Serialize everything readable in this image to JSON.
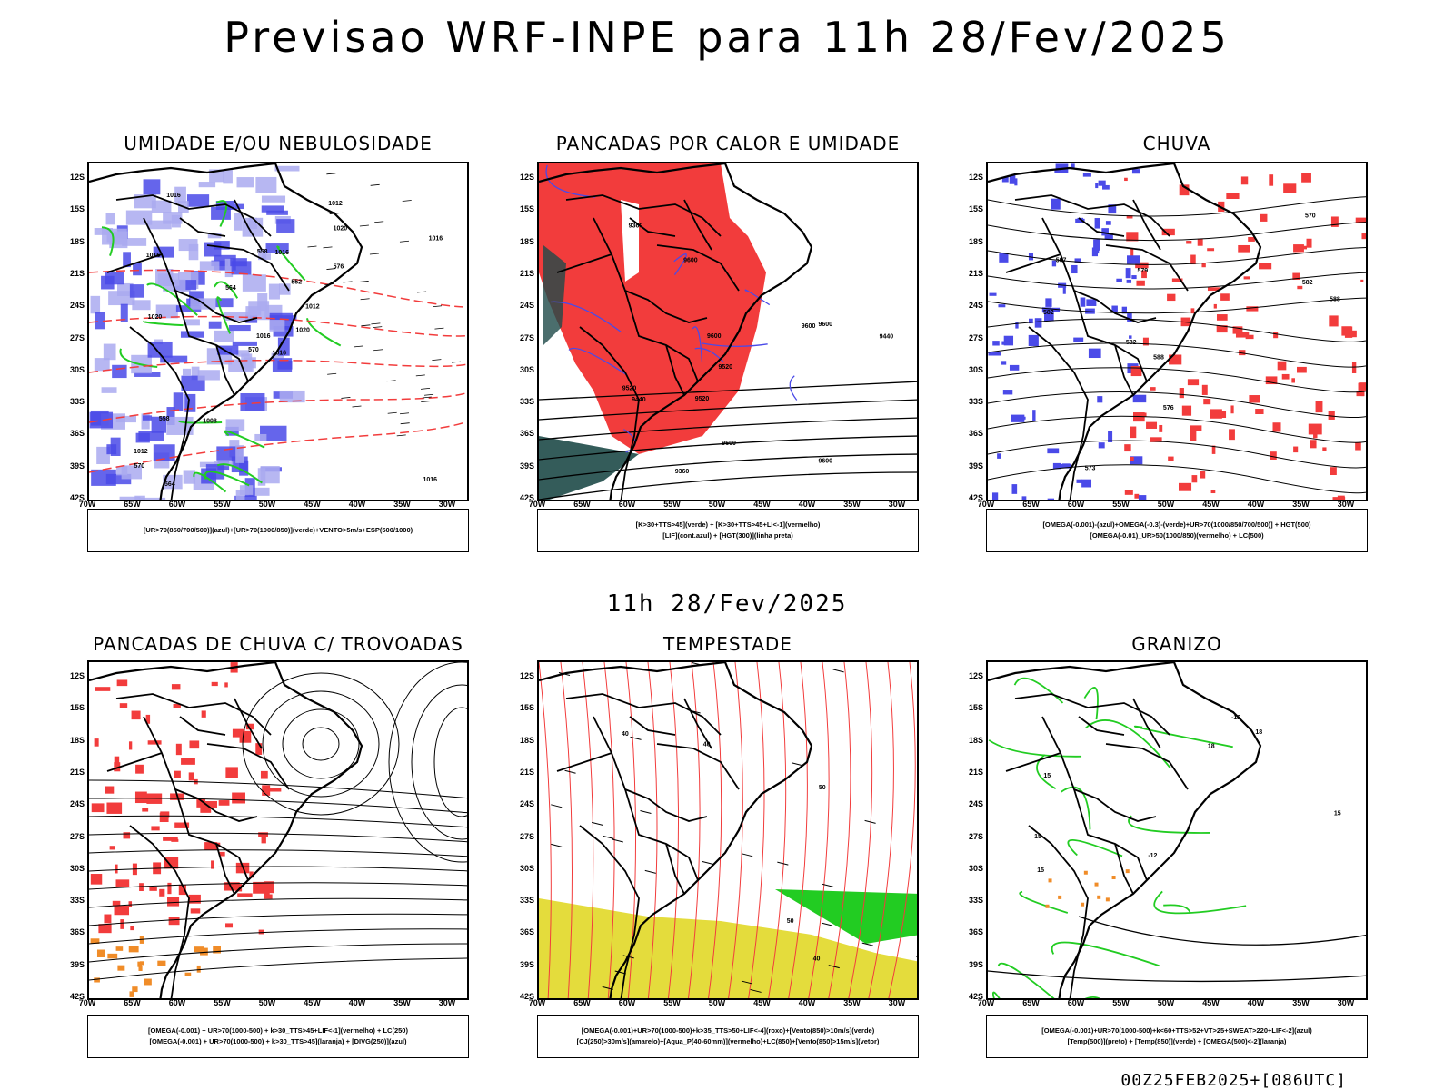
{
  "title": "Previsao WRF-INPE  para 11h 28/Fev/2025",
  "mid_title": "11h 28/Fev/2025",
  "footer": "00Z25FEB2025+[086UTC]",
  "lat_labels": [
    "12S",
    "15S",
    "18S",
    "21S",
    "24S",
    "27S",
    "30S",
    "33S",
    "36S",
    "39S",
    "42S"
  ],
  "lon_labels": [
    "70W",
    "65W",
    "60W",
    "55W",
    "50W",
    "45W",
    "40W",
    "35W",
    "30W"
  ],
  "colors": {
    "blue": "#4a4ae8",
    "lavender": "#aaaaf0",
    "green": "#22cc22",
    "red": "#f23c3c",
    "darkteal": "#1e4a48",
    "yellow": "#e4dc3c",
    "orange": "#f08c28",
    "purple": "#b040c0"
  },
  "panels": [
    {
      "title": "UMIDADE E/OU NEBULOSIDADE",
      "legend": [
        "[UR>70(850/700/500)](azul)+[UR>70(1000/850)](verde)+VENTO>5m/s+ESP(500/1000)"
      ],
      "contour_labels": [
        "1016",
        "1016",
        "1016",
        "1012",
        "1012",
        "1008",
        "1012",
        "1016",
        "1020",
        "1020",
        "1016",
        "1016",
        "1020",
        "1016",
        "570",
        "576",
        "564",
        "558",
        "552",
        "558",
        "564",
        "570"
      ]
    },
    {
      "title": "PANCADAS POR CALOR E UMIDADE",
      "legend": [
        "[K>30+TTS>45](verde) + [K>30+TTS>45+LI<-1](vermelho)",
        "[LIF](cont.azul) + [HGT(300)](linha preta)"
      ],
      "contour_labels": [
        "9600",
        "9600",
        "9600",
        "9520",
        "9600",
        "9600",
        "9600",
        "9520",
        "9520",
        "9440",
        "9440",
        "9360",
        "9360"
      ]
    },
    {
      "title": "CHUVA",
      "legend": [
        "[OMEGA(-0.001)-(azul)+OMEGA(-0.3)-(verde)+UR>70(1000/850/700/500)] + HGT(500)",
        "[OMEGA(-0.01)_UR>50(1000/850)(vermelho) + LC(500)"
      ],
      "contour_labels": [
        "588",
        "588",
        "582",
        "582",
        "579",
        "576",
        "573",
        "570",
        "567",
        "582"
      ]
    },
    {
      "title": "PANCADAS DE CHUVA C/ TROVOADAS",
      "legend": [
        "[OMEGA(-0.001) + UR>70(1000-500) + k>30_TTS>45+LIF<-1](vermelho) + LC(250)",
        "[OMEGA(-0.001) + UR>70(1000-500) + k>30_TTS>45](laranja) + [DIVG(250)](azul)"
      ],
      "contour_labels": []
    },
    {
      "title": "TEMPESTADE",
      "legend": [
        "[OMEGA(-0.001)+UR>70(1000-500)+k>35_TTS>50+LIF<-4](roxo)+[Vento(850)>10m/s](verde)",
        "[CJ(250)>30m/s](amarelo)+[Agua_P(40-60mm)](vermelho)+LC(850)+[Vento(850)>15m/s](vetor)"
      ],
      "contour_labels": [
        "40",
        "40",
        "50",
        "50",
        "40"
      ]
    },
    {
      "title": "GRANIZO",
      "legend": [
        "[OMEGA(-0.001)+UR>70(1000-500)+k<60+TTS>52+VT>25+SWEAT>220+LIF<-2](azul)",
        "[Temp(500)](preto) + [Temp(850)](verde) + [OMEGA(500)<-2](laranja)"
      ],
      "contour_labels": [
        "-12",
        "-12",
        "15",
        "15",
        "15",
        "18",
        "18",
        "15"
      ]
    }
  ]
}
